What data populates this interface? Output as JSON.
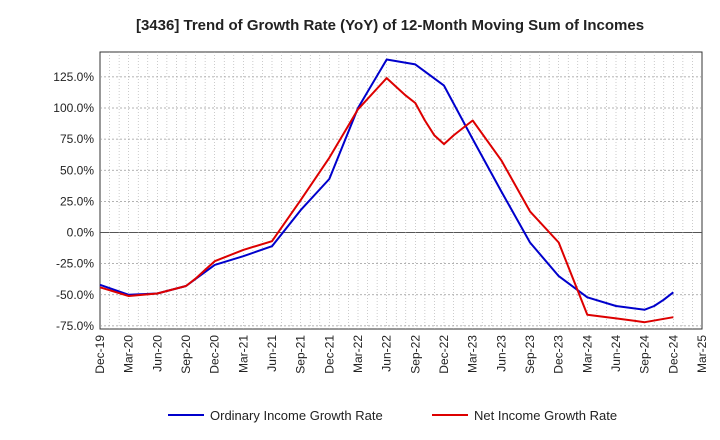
{
  "chart_data": {
    "type": "line",
    "title": "[3436]  Trend of Growth Rate (YoY) of 12-Month Moving Sum of Incomes",
    "xlabel": "",
    "ylabel": "",
    "ylim": [
      -77.5,
      145
    ],
    "y_ticks": [
      125,
      100,
      75,
      50,
      25,
      0,
      -25,
      -50,
      -75
    ],
    "y_tick_labels": [
      "125.0%",
      "100.0%",
      "75.0%",
      "50.0%",
      "25.0%",
      "0.0%",
      "-25.0%",
      "-50.0%",
      "-75.0%"
    ],
    "x_tick_labels": [
      "Dec-19",
      "Mar-20",
      "Jun-20",
      "Sep-20",
      "Dec-20",
      "Mar-21",
      "Jun-21",
      "Sep-21",
      "Dec-21",
      "Mar-22",
      "Jun-22",
      "Sep-22",
      "Dec-22",
      "Mar-23",
      "Jun-23",
      "Sep-23",
      "Dec-23",
      "Mar-24",
      "Jun-24",
      "Sep-24",
      "Dec-24",
      "Mar-25"
    ],
    "grid": true,
    "legend_position": "bottom",
    "series": [
      {
        "name": "Ordinary Income Growth Rate",
        "color": "#0000cc",
        "x": [
          "Dec-19",
          "Mar-20",
          "Jun-20",
          "Sep-20",
          "Dec-20",
          "Mar-21",
          "Jun-21",
          "Sep-21",
          "Dec-21",
          "Mar-22",
          "Jun-22",
          "Sep-22",
          "Dec-22",
          "Mar-23",
          "Jun-23",
          "Sep-23",
          "Dec-23",
          "Mar-24",
          "Jun-24",
          "Sep-24",
          "Oct-24",
          "Nov-24",
          "Dec-24"
        ],
        "values": [
          -42,
          -50,
          -49,
          -43,
          -26,
          -19,
          -11,
          18,
          43,
          100,
          139,
          135,
          118,
          75,
          33,
          -8,
          -35,
          -52,
          -59,
          -62,
          -59,
          -54,
          -48
        ]
      },
      {
        "name": "Net Income Growth Rate",
        "color": "#dd0000",
        "x": [
          "Dec-19",
          "Mar-20",
          "Jun-20",
          "Sep-20",
          "Oct-20",
          "Nov-20",
          "Dec-20",
          "Mar-21",
          "Jun-21",
          "Sep-21",
          "Dec-21",
          "Mar-22",
          "Jun-22",
          "Jul-22",
          "Aug-22",
          "Sep-22",
          "Oct-22",
          "Nov-22",
          "Dec-22",
          "Jan-23",
          "Feb-23",
          "Mar-23",
          "Jun-23",
          "Sep-23",
          "Dec-23",
          "Mar-24",
          "Jun-24",
          "Sep-24",
          "Dec-24"
        ],
        "values": [
          -44,
          -51,
          -49,
          -43,
          -37,
          -30,
          -23,
          -14,
          -7,
          26,
          60,
          99,
          124,
          117,
          110,
          104,
          90,
          78,
          71,
          78,
          84,
          90,
          58,
          17,
          -8,
          -66,
          -69,
          -72,
          -68
        ]
      }
    ]
  }
}
